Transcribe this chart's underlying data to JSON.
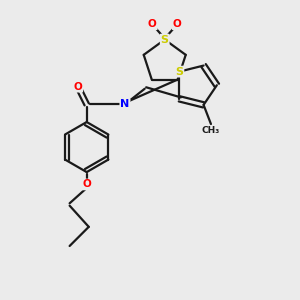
{
  "bg_color": "#ebebeb",
  "line_color": "#1a1a1a",
  "bond_width": 1.6,
  "atom_colors": {
    "S": "#cccc00",
    "N": "#0000ff",
    "O": "#ff0000",
    "C": "#1a1a1a"
  }
}
